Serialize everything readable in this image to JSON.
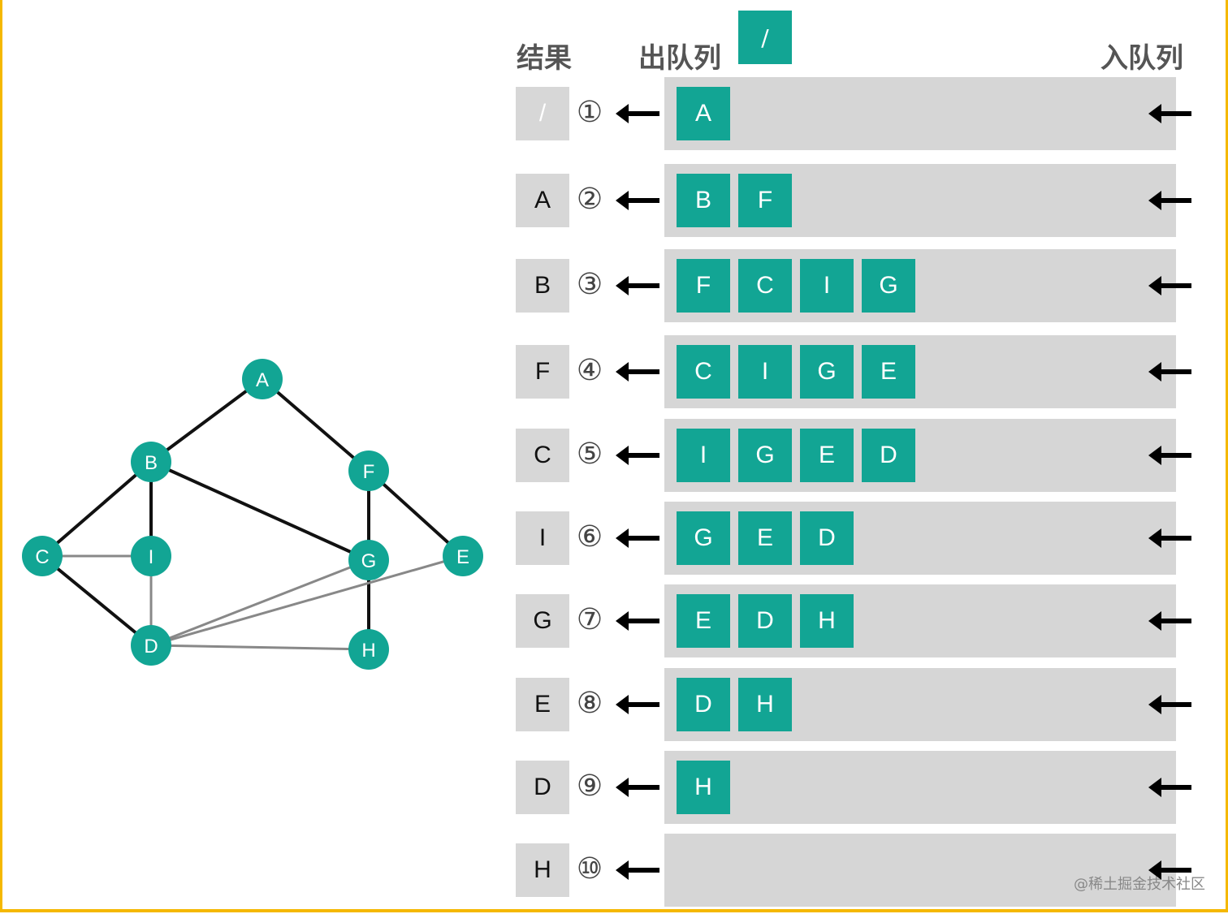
{
  "headers": {
    "result": "结果",
    "dequeue": "出队列",
    "enqueue": "入队列",
    "dequeued_value": "/"
  },
  "steps": [
    {
      "num": "①",
      "result": "/",
      "queue": [
        "A"
      ]
    },
    {
      "num": "②",
      "result": "A",
      "queue": [
        "B",
        "F"
      ]
    },
    {
      "num": "③",
      "result": "B",
      "queue": [
        "F",
        "C",
        "I",
        "G"
      ]
    },
    {
      "num": "④",
      "result": "F",
      "queue": [
        "C",
        "I",
        "G",
        "E"
      ]
    },
    {
      "num": "⑤",
      "result": "C",
      "queue": [
        "I",
        "G",
        "E",
        "D"
      ]
    },
    {
      "num": "⑥",
      "result": "I",
      "queue": [
        "G",
        "E",
        "D"
      ]
    },
    {
      "num": "⑦",
      "result": "G",
      "queue": [
        "E",
        "D",
        "H"
      ]
    },
    {
      "num": "⑧",
      "result": "E",
      "queue": [
        "D",
        "H"
      ]
    },
    {
      "num": "⑨",
      "result": "D",
      "queue": [
        "H"
      ]
    },
    {
      "num": "⑩",
      "result": "H",
      "queue": []
    }
  ],
  "graph": {
    "nodes": [
      "A",
      "B",
      "F",
      "C",
      "I",
      "G",
      "E",
      "D",
      "H"
    ],
    "edges": [
      [
        "A",
        "B"
      ],
      [
        "A",
        "F"
      ],
      [
        "B",
        "C"
      ],
      [
        "B",
        "I"
      ],
      [
        "B",
        "G"
      ],
      [
        "C",
        "I"
      ],
      [
        "C",
        "D"
      ],
      [
        "I",
        "D"
      ],
      [
        "F",
        "G"
      ],
      [
        "F",
        "E"
      ],
      [
        "G",
        "H"
      ],
      [
        "D",
        "G"
      ],
      [
        "D",
        "E"
      ],
      [
        "D",
        "H"
      ]
    ]
  },
  "colors": {
    "node": "#12a594",
    "queue_item": "#12a594",
    "queue_bar": "#d6d6d6",
    "border": "#f5b800"
  },
  "watermark": "@稀土掘金技术社区"
}
